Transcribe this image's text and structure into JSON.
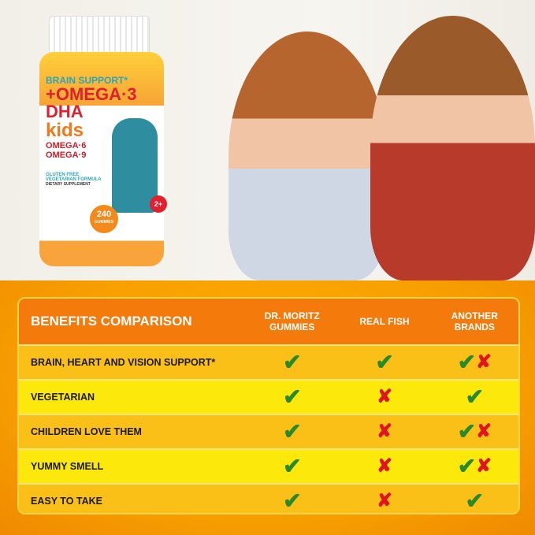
{
  "product": {
    "brand_tagline": "BRAIN SUPPORT*",
    "line1": "+OMEGA·3",
    "line2": "DHA",
    "line3": "kids",
    "line4": "OMEGA·6",
    "line5": "OMEGA·9",
    "count": "240",
    "count_unit": "GUMMIES",
    "age": "2+",
    "claims": "GLUTEN FREE VEGETARIAN FORMULA",
    "type": "DIETARY SUPPLEMENT"
  },
  "table": {
    "title": "BENEFITS COMPARISON",
    "columns": [
      "DR. MORITZ GUMMIES",
      "REAL FISH",
      "ANOTHER BRANDS"
    ],
    "rows": [
      {
        "label": "BRAIN, HEART AND VISION SUPPORT*",
        "values": [
          "check",
          "check",
          "check-cross"
        ]
      },
      {
        "label": "VEGETARIAN",
        "values": [
          "check",
          "cross",
          "check"
        ]
      },
      {
        "label": "CHILDREN LOVE THEM",
        "values": [
          "check",
          "cross",
          "check-cross"
        ]
      },
      {
        "label": "YUMMY SMELL",
        "values": [
          "check",
          "cross",
          "check-cross"
        ]
      },
      {
        "label": "EASY TO TAKE",
        "values": [
          "check",
          "cross",
          "check"
        ]
      }
    ]
  },
  "colors": {
    "header": "#f47a0c",
    "row_dark": "#fbc018",
    "row_light": "#fde80c",
    "check": "#2a8a2a",
    "cross": "#e0141e"
  }
}
